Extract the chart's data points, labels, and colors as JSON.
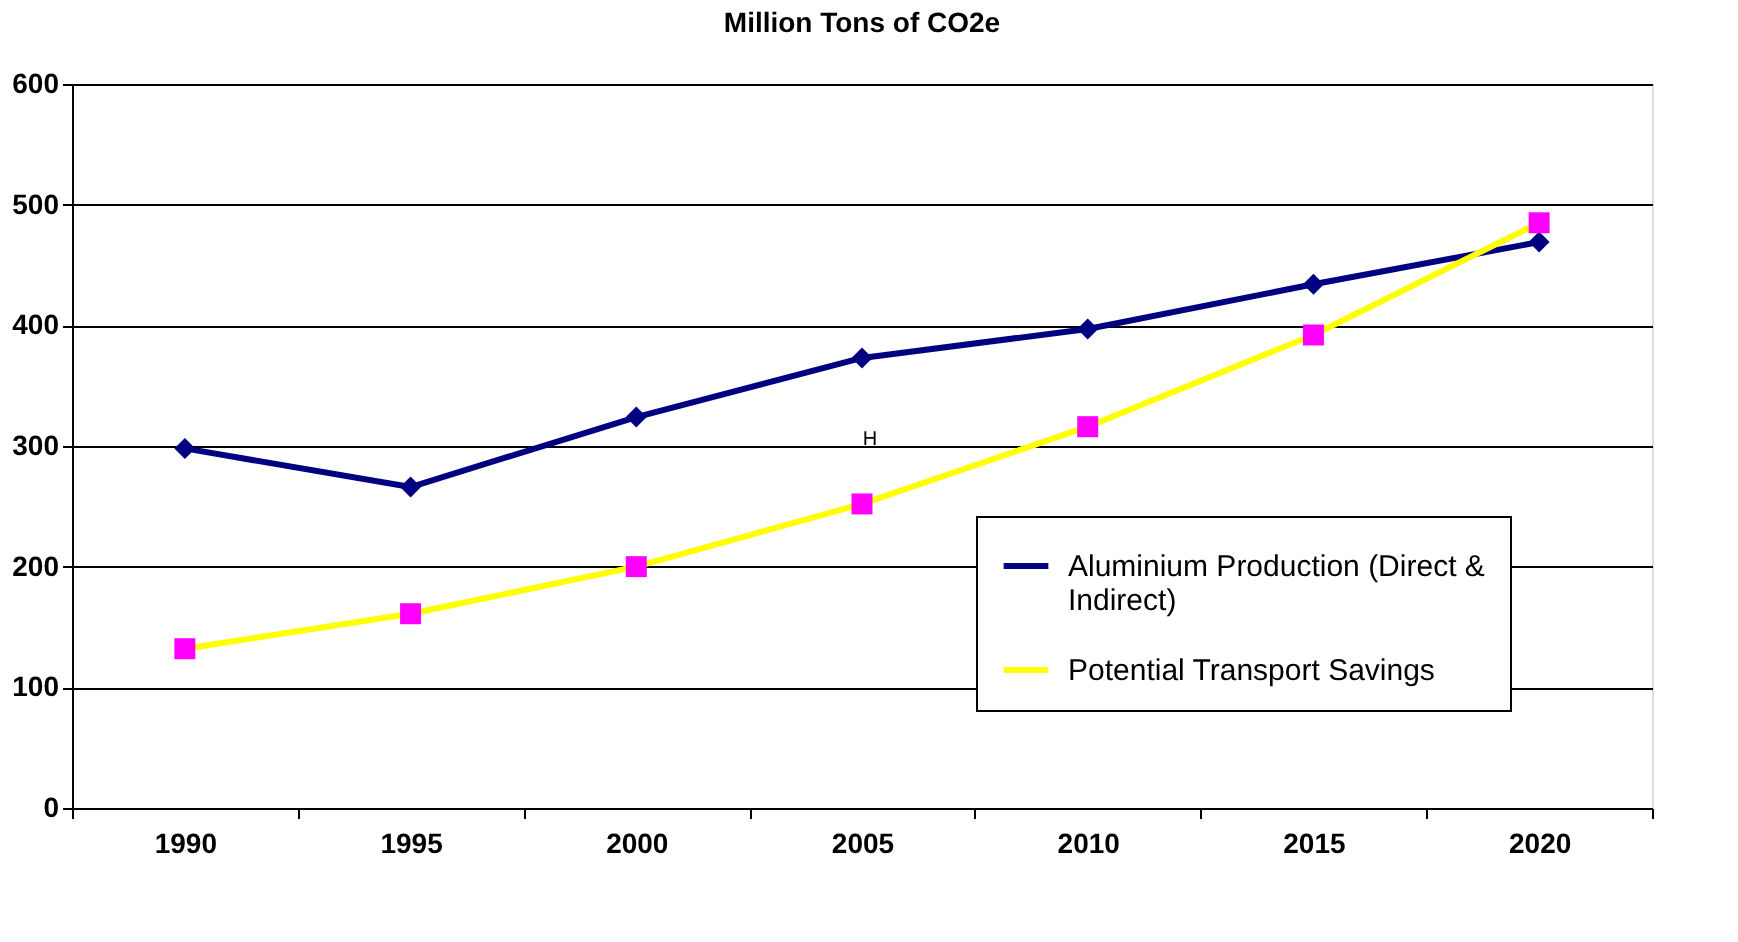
{
  "chart_data": {
    "type": "line",
    "title": "Million Tons of CO2e",
    "categories": [
      "1990",
      "1995",
      "2000",
      "2005",
      "2010",
      "2015",
      "2020"
    ],
    "series": [
      {
        "name": "Aluminium Production (Direct & Indirect)",
        "color": "#000080",
        "marker": "diamond",
        "values": [
          298,
          266,
          324,
          373,
          397,
          434,
          469
        ]
      },
      {
        "name": "Potential Transport Savings",
        "color": "#ffff00",
        "marker": "square",
        "colors": [
          "#ff00ff",
          "#ff00ff",
          "#ff00ff",
          "#ff00ff",
          "#ff00ff",
          "#ff00ff",
          "#ff00ff"
        ],
        "values": [
          132,
          161,
          200,
          252,
          316,
          392,
          485
        ]
      }
    ],
    "ylim": [
      0,
      600
    ],
    "yticks": [
      0,
      100,
      200,
      300,
      400,
      500,
      600
    ],
    "grid": "y",
    "legend": "bottom right",
    "annotations": [
      "H"
    ]
  }
}
